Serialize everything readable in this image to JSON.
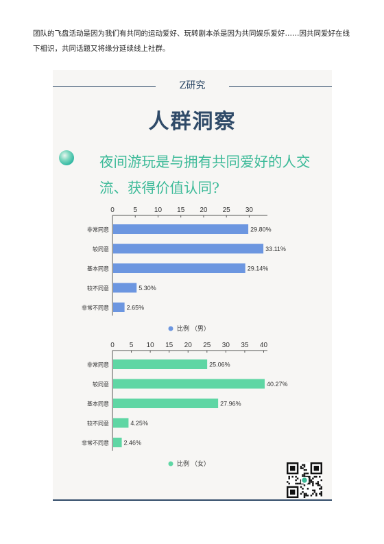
{
  "intro_text": "团队的飞盘活动是因为我们有共同的运动爱好、玩转剧本杀是因为共同娱乐爱好……因共同爱好在线下相识，共同话题又将缘分延续线上社群。",
  "brand": "Z研究",
  "heading": "人群洞察",
  "question": "夜间游玩是与拥有共同爱好的人交流、获得价值认同?",
  "colors": {
    "male": "#6c96e0",
    "female": "#5fd6a4",
    "title": "#2f4a68",
    "question": "#3cba98"
  },
  "chart_data": [
    {
      "type": "bar",
      "orientation": "horizontal",
      "categories": [
        "非常同意",
        "较同意",
        "基本同意",
        "较不同意",
        "非常不同意"
      ],
      "series": [
        {
          "name": "比例 （男）",
          "values": [
            29.8,
            33.11,
            29.14,
            5.3,
            2.65
          ]
        }
      ],
      "value_labels": [
        "29.80%",
        "33.11%",
        "29.14%",
        "5.30%",
        "2.65%"
      ],
      "ticks": [
        0,
        5,
        10,
        15,
        20,
        25,
        30
      ],
      "xlim": [
        0,
        34
      ],
      "legend_position": "bottom",
      "color": "#6c96e0"
    },
    {
      "type": "bar",
      "orientation": "horizontal",
      "categories": [
        "非常同意",
        "较同意",
        "基本同意",
        "较不同意",
        "非常不同意"
      ],
      "series": [
        {
          "name": "比例 （女）",
          "values": [
            25.06,
            40.27,
            27.96,
            4.25,
            2.46
          ]
        }
      ],
      "value_labels": [
        "25.06%",
        "40.27%",
        "27.96%",
        "4.25%",
        "2.46%"
      ],
      "ticks": [
        0,
        5,
        10,
        15,
        20,
        25,
        30,
        35,
        40
      ],
      "xlim": [
        0,
        41
      ],
      "legend_position": "bottom",
      "color": "#5fd6a4"
    }
  ]
}
